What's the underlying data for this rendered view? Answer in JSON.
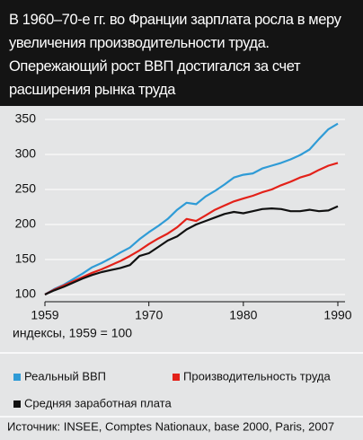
{
  "chart_data": {
    "type": "line",
    "title": "В 1960–70-е гг. во Франции зарплата росла в меру увеличения производительности труда. Опережающий рост ВВП достигался за счет расширения рынка труда",
    "x_note": "индексы, 1959 = 100",
    "source": "Источник: INSEE, Comptes Nationaux, base 2000, Paris, 2007",
    "x": [
      1959,
      1960,
      1961,
      1962,
      1963,
      1964,
      1965,
      1966,
      1967,
      1968,
      1969,
      1970,
      1971,
      1972,
      1973,
      1974,
      1975,
      1976,
      1977,
      1978,
      1979,
      1980,
      1981,
      1982,
      1983,
      1984,
      1985,
      1986,
      1987,
      1988,
      1989,
      1990
    ],
    "xlim": [
      1959,
      1990
    ],
    "xticks": [
      1959,
      1970,
      1980,
      1990
    ],
    "ylim": [
      100,
      350
    ],
    "yticks": [
      100,
      150,
      200,
      250,
      300,
      350
    ],
    "grid": true,
    "series": [
      {
        "name": "Реальный ВВП",
        "color": "#2f9bd6",
        "values": [
          100,
          108,
          114,
          122,
          130,
          139,
          145,
          152,
          160,
          167,
          179,
          189,
          198,
          208,
          221,
          231,
          229,
          240,
          248,
          257,
          267,
          271,
          273,
          280,
          284,
          288,
          293,
          299,
          307,
          322,
          336,
          344
        ]
      },
      {
        "name": "Производительность труда",
        "color": "#e32119",
        "values": [
          100,
          107,
          113,
          119,
          125,
          131,
          136,
          142,
          148,
          155,
          163,
          172,
          180,
          187,
          196,
          208,
          205,
          213,
          221,
          227,
          233,
          237,
          241,
          246,
          250,
          256,
          261,
          267,
          271,
          278,
          284,
          288
        ]
      },
      {
        "name": "Средняя заработная плата",
        "color": "#111111",
        "values": [
          100,
          106,
          111,
          117,
          123,
          128,
          132,
          135,
          138,
          142,
          155,
          159,
          168,
          177,
          183,
          193,
          200,
          205,
          210,
          215,
          218,
          216,
          219,
          222,
          223,
          222,
          219,
          219,
          221,
          219,
          220,
          226
        ]
      }
    ]
  }
}
